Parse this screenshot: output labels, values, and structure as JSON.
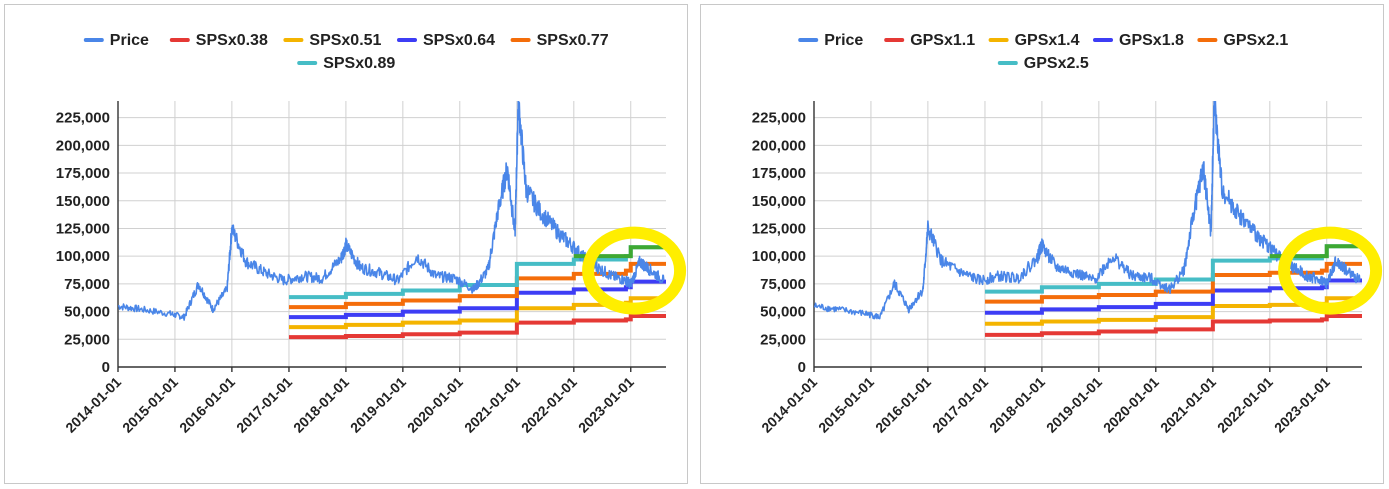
{
  "chart_data": [
    {
      "type": "line",
      "title": "",
      "xlabel": "",
      "ylabel": "",
      "xlim": [
        "2014-01-01",
        "2023-08-15"
      ],
      "ylim": [
        0,
        240000
      ],
      "y_ticks": [
        0,
        25000,
        50000,
        75000,
        100000,
        125000,
        150000,
        175000,
        200000,
        225000
      ],
      "y_tick_labels": [
        "0",
        "25,000",
        "50,000",
        "75,000",
        "100,000",
        "125,000",
        "150,000",
        "175,000",
        "200,000",
        "225,000"
      ],
      "x_ticks": [
        "2014-01-01",
        "2015-01-01",
        "2016-01-01",
        "2017-01-01",
        "2018-01-01",
        "2019-01-01",
        "2020-01-01",
        "2021-01-01",
        "2022-01-01",
        "2023-01-01"
      ],
      "grid": true,
      "legend_position": "top",
      "highlight_color": "#ffee00",
      "series": [
        {
          "name": "Price",
          "color": "#4a86e8",
          "x": [
            "2014-01-01",
            "2014-06-01",
            "2014-12-01",
            "2015-03-01",
            "2015-06-01",
            "2015-09-01",
            "2015-12-01",
            "2016-01-01",
            "2016-04-01",
            "2016-08-01",
            "2016-12-01",
            "2017-04-01",
            "2017-08-01",
            "2017-12-01",
            "2018-01-01",
            "2018-04-01",
            "2018-08-01",
            "2018-12-01",
            "2019-04-01",
            "2019-08-01",
            "2019-12-01",
            "2020-04-01",
            "2020-07-01",
            "2020-09-01",
            "2020-11-01",
            "2020-12-20",
            "2021-01-10",
            "2021-03-01",
            "2021-06-01",
            "2021-10-01",
            "2022-01-01",
            "2022-04-01",
            "2022-06-01",
            "2022-09-01",
            "2022-12-01",
            "2023-01-01",
            "2023-03-01",
            "2023-05-01",
            "2023-08-01"
          ],
          "y": [
            55000,
            52000,
            48000,
            45000,
            75000,
            52000,
            70000,
            125000,
            95000,
            85000,
            78000,
            82000,
            80000,
            98000,
            110000,
            90000,
            85000,
            78000,
            100000,
            82000,
            80000,
            70000,
            88000,
            140000,
            180000,
            120000,
            240000,
            160000,
            140000,
            120000,
            108000,
            95000,
            90000,
            82000,
            78000,
            75000,
            95000,
            88000,
            78000
          ]
        },
        {
          "name": "SPSx0.38",
          "color": "#e53935",
          "x": [
            "2017-01-01",
            "2018-01-01",
            "2019-01-01",
            "2020-01-01",
            "2021-01-01",
            "2022-01-01",
            "2022-12-01",
            "2023-01-01",
            "2023-08-15"
          ],
          "y": [
            27000,
            28000,
            29500,
            31000,
            40000,
            42000,
            43000,
            46000,
            46000
          ]
        },
        {
          "name": "SPSx0.51",
          "color": "#f4b400",
          "x": [
            "2017-01-01",
            "2018-01-01",
            "2019-01-01",
            "2020-01-01",
            "2021-01-01",
            "2022-01-01",
            "2022-12-01",
            "2023-01-01",
            "2023-08-15"
          ],
          "y": [
            36000,
            38000,
            40000,
            42000,
            53000,
            56000,
            58000,
            62000,
            62000
          ]
        },
        {
          "name": "SPSx0.64",
          "color": "#3d3df5",
          "x": [
            "2017-01-01",
            "2018-01-01",
            "2019-01-01",
            "2020-01-01",
            "2021-01-01",
            "2022-01-01",
            "2022-12-01",
            "2023-01-01",
            "2023-08-15"
          ],
          "y": [
            45000,
            47000,
            50000,
            53000,
            67000,
            70000,
            72000,
            77000,
            77000
          ]
        },
        {
          "name": "SPSx0.77",
          "color": "#f46d0a",
          "x": [
            "2017-01-01",
            "2018-01-01",
            "2019-01-01",
            "2020-01-01",
            "2021-01-01",
            "2022-01-01",
            "2022-12-01",
            "2023-01-01",
            "2023-08-15"
          ],
          "y": [
            54000,
            57000,
            60000,
            64000,
            80000,
            84000,
            87000,
            93000,
            93000
          ]
        },
        {
          "name": "SPSx0.89",
          "color": "#46bdc6",
          "x": [
            "2017-01-01",
            "2018-01-01",
            "2019-01-01",
            "2020-01-01",
            "2021-01-01",
            "2022-01-01",
            "2022-12-01",
            "2023-01-01",
            "2023-08-15"
          ],
          "y": [
            63000,
            66000,
            69000,
            74000,
            93000,
            97000,
            100000,
            108000,
            108000
          ]
        }
      ],
      "legend_rows": [
        [
          "Price",
          "SPSx0.38",
          "SPSx0.51",
          "SPSx0.64",
          "SPSx0.77"
        ],
        [
          "SPSx0.89"
        ]
      ]
    },
    {
      "type": "line",
      "title": "",
      "xlabel": "",
      "ylabel": "",
      "xlim": [
        "2014-01-01",
        "2023-08-15"
      ],
      "ylim": [
        0,
        240000
      ],
      "y_ticks": [
        0,
        25000,
        50000,
        75000,
        100000,
        125000,
        150000,
        175000,
        200000,
        225000
      ],
      "y_tick_labels": [
        "0",
        "25,000",
        "50,000",
        "75,000",
        "100,000",
        "125,000",
        "150,000",
        "175,000",
        "200,000",
        "225,000"
      ],
      "x_ticks": [
        "2014-01-01",
        "2015-01-01",
        "2016-01-01",
        "2017-01-01",
        "2018-01-01",
        "2019-01-01",
        "2020-01-01",
        "2021-01-01",
        "2022-01-01",
        "2023-01-01"
      ],
      "grid": true,
      "legend_position": "top",
      "highlight_color": "#ffee00",
      "series": [
        {
          "name": "Price",
          "color": "#4a86e8",
          "x": [
            "2014-01-01",
            "2014-06-01",
            "2014-12-01",
            "2015-03-01",
            "2015-06-01",
            "2015-09-01",
            "2015-12-01",
            "2016-01-01",
            "2016-04-01",
            "2016-08-01",
            "2016-12-01",
            "2017-04-01",
            "2017-08-01",
            "2017-12-01",
            "2018-01-01",
            "2018-04-01",
            "2018-08-01",
            "2018-12-01",
            "2019-04-01",
            "2019-08-01",
            "2019-12-01",
            "2020-04-01",
            "2020-07-01",
            "2020-09-01",
            "2020-11-01",
            "2020-12-20",
            "2021-01-10",
            "2021-03-01",
            "2021-06-01",
            "2021-10-01",
            "2022-01-01",
            "2022-04-01",
            "2022-06-01",
            "2022-09-01",
            "2022-12-01",
            "2023-01-01",
            "2023-03-01",
            "2023-05-01",
            "2023-08-01"
          ],
          "y": [
            55000,
            52000,
            48000,
            45000,
            75000,
            52000,
            70000,
            125000,
            95000,
            85000,
            78000,
            82000,
            80000,
            98000,
            110000,
            90000,
            85000,
            78000,
            100000,
            82000,
            80000,
            70000,
            88000,
            140000,
            180000,
            120000,
            240000,
            160000,
            140000,
            120000,
            108000,
            95000,
            90000,
            82000,
            78000,
            75000,
            95000,
            88000,
            78000
          ]
        },
        {
          "name": "GPSx1.1",
          "color": "#e53935",
          "x": [
            "2017-01-01",
            "2018-01-01",
            "2019-01-01",
            "2020-01-01",
            "2021-01-01",
            "2022-01-01",
            "2022-12-01",
            "2023-01-01",
            "2023-08-15"
          ],
          "y": [
            29000,
            30500,
            32000,
            34000,
            41000,
            42000,
            43000,
            46000,
            46000
          ]
        },
        {
          "name": "GPSx1.4",
          "color": "#f4b400",
          "x": [
            "2017-01-01",
            "2018-01-01",
            "2019-01-01",
            "2020-01-01",
            "2021-01-01",
            "2022-01-01",
            "2022-12-01",
            "2023-01-01",
            "2023-08-15"
          ],
          "y": [
            39000,
            41000,
            42500,
            45000,
            55000,
            56000,
            57000,
            62000,
            62000
          ]
        },
        {
          "name": "GPSx1.8",
          "color": "#3d3df5",
          "x": [
            "2017-01-01",
            "2018-01-01",
            "2019-01-01",
            "2020-01-01",
            "2021-01-01",
            "2022-01-01",
            "2022-12-01",
            "2023-01-01",
            "2023-08-15"
          ],
          "y": [
            49000,
            52000,
            54000,
            57000,
            69000,
            71000,
            72000,
            78000,
            78000
          ]
        },
        {
          "name": "GPSx2.1",
          "color": "#f46d0a",
          "x": [
            "2017-01-01",
            "2018-01-01",
            "2019-01-01",
            "2020-01-01",
            "2021-01-01",
            "2022-01-01",
            "2022-12-01",
            "2023-01-01",
            "2023-08-15"
          ],
          "y": [
            59000,
            63000,
            65000,
            68000,
            83000,
            85000,
            87000,
            93000,
            93000
          ]
        },
        {
          "name": "GPSx2.5",
          "color": "#46bdc6",
          "x": [
            "2017-01-01",
            "2018-01-01",
            "2019-01-01",
            "2020-01-01",
            "2021-01-01",
            "2022-01-01",
            "2022-12-01",
            "2023-01-01",
            "2023-08-15"
          ],
          "y": [
            68000,
            72000,
            75000,
            79000,
            96000,
            98000,
            100000,
            109000,
            109000
          ]
        }
      ],
      "legend_rows": [
        [
          "Price",
          "GPSx1.1",
          "GPSx1.4",
          "GPSx1.8",
          "GPSx2.1"
        ],
        [
          "GPSx2.5"
        ]
      ]
    }
  ]
}
